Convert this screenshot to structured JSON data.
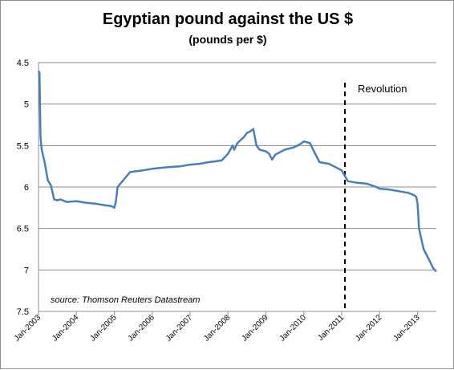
{
  "chart_data": {
    "type": "line",
    "title": "Egyptian pound against the US $",
    "subtitle": "(pounds per $)",
    "xlabel": "",
    "ylabel": "",
    "y_inverted": true,
    "ylim": [
      4.5,
      7.5
    ],
    "yticks": [
      "4.5",
      "5",
      "5.5",
      "6",
      "6.5",
      "7",
      "7.5"
    ],
    "xlim": [
      "2003-01",
      "2013-07"
    ],
    "xticks": [
      "Jan-2003",
      "Jan-2004",
      "Jan-2005",
      "Jan-2006",
      "Jan-2007",
      "Jan-2008",
      "Jan-2009",
      "Jan-2010",
      "Jan-2011",
      "Jan-2012",
      "Jan-2013"
    ],
    "grid": true,
    "line_color": "#4a7ebb",
    "series": [
      {
        "name": "",
        "x": [
          "2003-01-01",
          "2003-01-10",
          "2003-01-20",
          "2003-02-01",
          "2003-03-01",
          "2003-04-01",
          "2003-05-01",
          "2003-06-01",
          "2003-07-01",
          "2003-08-01",
          "2003-10-01",
          "2004-01-01",
          "2004-04-01",
          "2004-07-01",
          "2004-10-01",
          "2004-12-01",
          "2005-01-01",
          "2005-01-15",
          "2005-02-01",
          "2005-06-01",
          "2005-10-01",
          "2006-01-01",
          "2006-06-01",
          "2006-10-01",
          "2007-01-01",
          "2007-04-01",
          "2007-07-01",
          "2007-09-01",
          "2007-11-01",
          "2008-01-01",
          "2008-02-15",
          "2008-03-01",
          "2008-04-01",
          "2008-06-01",
          "2008-07-01",
          "2008-08-01",
          "2008-09-01",
          "2008-10-01",
          "2008-11-01",
          "2009-01-01",
          "2009-02-01",
          "2009-03-01",
          "2009-04-01",
          "2009-07-01",
          "2009-10-01",
          "2009-12-01",
          "2010-01-01",
          "2010-03-01",
          "2010-04-01",
          "2010-06-01",
          "2010-09-01",
          "2011-01-01",
          "2011-03-01",
          "2011-06-01",
          "2011-09-01",
          "2011-12-01",
          "2012-01-01",
          "2012-04-01",
          "2012-07-01",
          "2012-10-01",
          "2012-12-01",
          "2012-12-20",
          "2013-01-01",
          "2013-01-15",
          "2013-02-01",
          "2013-03-01",
          "2013-05-01",
          "2013-06-01",
          "2013-07-01"
        ],
        "values": [
          4.6,
          4.62,
          5.4,
          5.55,
          5.7,
          5.92,
          5.98,
          6.15,
          6.16,
          6.15,
          6.18,
          6.17,
          6.19,
          6.2,
          6.22,
          6.23,
          6.25,
          6.18,
          6.0,
          5.82,
          5.8,
          5.78,
          5.76,
          5.75,
          5.73,
          5.72,
          5.7,
          5.69,
          5.68,
          5.6,
          5.5,
          5.55,
          5.47,
          5.4,
          5.35,
          5.33,
          5.3,
          5.5,
          5.55,
          5.57,
          5.6,
          5.67,
          5.61,
          5.55,
          5.52,
          5.48,
          5.45,
          5.47,
          5.55,
          5.7,
          5.72,
          5.8,
          5.93,
          5.95,
          5.96,
          6.0,
          6.02,
          6.03,
          6.05,
          6.07,
          6.1,
          6.12,
          6.2,
          6.5,
          6.6,
          6.75,
          6.9,
          6.98,
          7.02
        ]
      }
    ],
    "annotations": [
      {
        "date": "2011-02-01",
        "label": "Revolution",
        "style": "dashed-vertical"
      }
    ],
    "source": "source: Thomson Reuters Datastream"
  }
}
